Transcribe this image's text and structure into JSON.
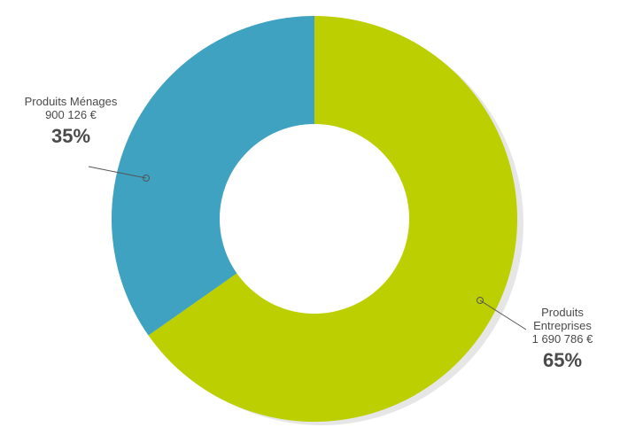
{
  "chart_data": {
    "type": "pie",
    "donut": true,
    "slices": [
      {
        "name": "Produits Ménages",
        "amount": "900 126 €",
        "percent_label": "35%",
        "value": 900126,
        "color": "#3fa2c0"
      },
      {
        "name": "Produits Entreprises",
        "amount": "1 690 786 €",
        "percent_label": "65%",
        "value": 1690786,
        "color": "#bccf00"
      }
    ]
  }
}
